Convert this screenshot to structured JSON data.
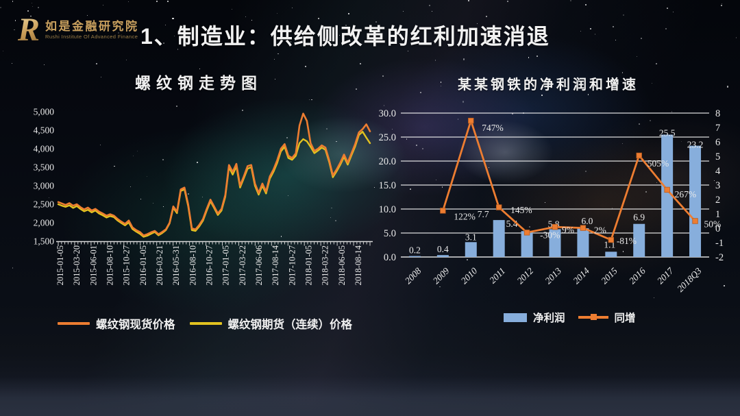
{
  "header": {
    "logo_letter": "R",
    "logo_cn": "如是金融研究院",
    "logo_en": "Rushi Institute Of Advanced Finance",
    "title": "1、制造业：供给侧改革的红利加速消退"
  },
  "colors": {
    "accent_gold": "#C9A05E",
    "title_text": "#F2F2F2",
    "spot_line": "#ED7D31",
    "futures_line": "#E2C220",
    "bar_fill": "#87AEDC",
    "growth_line": "#ED7D31",
    "axis_text": "#EAEAEA"
  },
  "chart_data": [
    {
      "type": "line",
      "title": "螺纹钢走势图",
      "ylabel": "",
      "xlabel": "",
      "ylim": [
        1500,
        5000
      ],
      "y_tick_labels": [
        "5,000",
        "4,500",
        "4,000",
        "3,500",
        "3,000",
        "2,500",
        "2,000",
        "1,500"
      ],
      "x_tick_labels": [
        "2015-01-05",
        "2015-03-20",
        "2015-06-01",
        "2015-08-10",
        "2015-10-27",
        "2016-01-05",
        "2016-03-21",
        "2016-05-31",
        "2016-08-10",
        "2016-10-27",
        "2017-01-05",
        "2017-03-22",
        "2017-06-06",
        "2017-08-14",
        "2017-10-27",
        "2018-01-05",
        "2018-03-22",
        "2018-06-05",
        "2018-08-14"
      ],
      "grid": false,
      "legend_position": "bottom",
      "series": [
        {
          "name": "螺纹钢现货价格",
          "color": "#ED7D31",
          "values": [
            2560,
            2520,
            2480,
            2530,
            2460,
            2500,
            2420,
            2360,
            2410,
            2330,
            2375,
            2300,
            2250,
            2190,
            2230,
            2190,
            2100,
            2030,
            1970,
            2060,
            1875,
            1800,
            1750,
            1655,
            1690,
            1740,
            1780,
            1690,
            1750,
            1820,
            2000,
            2440,
            2300,
            2900,
            2950,
            2500,
            1850,
            1820,
            1940,
            2100,
            2375,
            2625,
            2440,
            2250,
            2375,
            2750,
            3560,
            3375,
            3590,
            3000,
            3250,
            3530,
            3560,
            3060,
            2810,
            3060,
            2840,
            3250,
            3440,
            3690,
            4000,
            4125,
            3810,
            3750,
            3875,
            4625,
            4950,
            4750,
            4150,
            3940,
            4000,
            4090,
            4030,
            3690,
            3280,
            3440,
            3625,
            3840,
            3625,
            3875,
            4125,
            4440,
            4530,
            4660,
            4470
          ]
        },
        {
          "name": "螺纹钢期货（连续）价格",
          "color": "#E2C220",
          "values": [
            2500,
            2460,
            2430,
            2470,
            2400,
            2450,
            2370,
            2310,
            2350,
            2280,
            2330,
            2250,
            2200,
            2140,
            2180,
            2150,
            2060,
            1990,
            1930,
            2010,
            1830,
            1760,
            1700,
            1620,
            1650,
            1700,
            1750,
            1660,
            1720,
            1800,
            1980,
            2400,
            2260,
            2860,
            2900,
            2450,
            1800,
            1780,
            1900,
            2060,
            2330,
            2580,
            2400,
            2210,
            2330,
            2700,
            3500,
            3300,
            3520,
            2950,
            3200,
            3460,
            3500,
            3000,
            2760,
            3000,
            2790,
            3190,
            3380,
            3620,
            3930,
            4050,
            3750,
            3700,
            3810,
            4150,
            4260,
            4200,
            4050,
            3880,
            3950,
            4030,
            3970,
            3640,
            3230,
            3390,
            3570,
            3780,
            3570,
            3820,
            4060,
            4370,
            4460,
            4300,
            4150
          ]
        }
      ]
    },
    {
      "type": "combo_bar_line",
      "title": "某某钢铁的净利润和增速",
      "categories": [
        "2008",
        "2009",
        "2010",
        "2011",
        "2012",
        "2013",
        "2014",
        "2015",
        "2016",
        "2017",
        "2018Q3"
      ],
      "left_axis": {
        "min": 0,
        "max": 30,
        "tick_labels": [
          "30.0",
          "25.0",
          "20.0",
          "15.0",
          "10.0",
          "5.0",
          "0.0"
        ]
      },
      "right_axis": {
        "min": -2,
        "max": 8,
        "tick_labels": [
          "8",
          "7",
          "6",
          "5",
          "4",
          "3",
          "2",
          "1",
          "0",
          "-1",
          "-2"
        ]
      },
      "grid": true,
      "legend_position": "bottom",
      "bar_series": {
        "name": "净利润",
        "color": "#87AEDC",
        "values": [
          0.2,
          0.4,
          3.1,
          7.7,
          5.4,
          5.8,
          6.0,
          1.1,
          6.9,
          25.5,
          23.2
        ],
        "labels": [
          "0.2",
          "0.4",
          "3.1",
          "7.7",
          "5.4",
          "5.8",
          "6.0",
          "1.1",
          "6.9",
          "25.5",
          "23.2"
        ]
      },
      "line_series": {
        "name": "同增",
        "color": "#ED7D31",
        "axis": "right",
        "values": [
          null,
          1.22,
          7.47,
          1.45,
          -0.3,
          0.09,
          0.02,
          -0.81,
          5.05,
          2.67,
          0.5
        ],
        "labels": [
          null,
          "122%",
          "747%",
          "145%",
          "-30%",
          "9%",
          "2%",
          "-81%",
          "505%",
          "267%",
          "50%"
        ]
      }
    }
  ]
}
